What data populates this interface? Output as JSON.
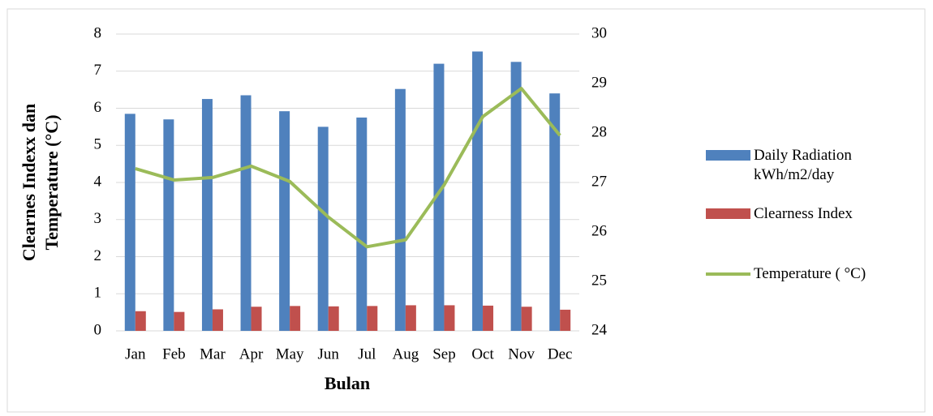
{
  "chart_data": {
    "type": "bar",
    "xlabel": "Bulan",
    "ylabel": [
      "Clearnes Indexx dan",
      "Temperature (°C)"
    ],
    "categories": [
      "Jan",
      "Feb",
      "Mar",
      "Apr",
      "May",
      "Jun",
      "Jul",
      "Aug",
      "Sep",
      "Oct",
      "Nov",
      "Dec"
    ],
    "series": [
      {
        "name": "Daily Radiation kWh/m2/day",
        "color": "#4f81bd",
        "type": "bar",
        "values": [
          5.85,
          5.7,
          6.25,
          6.35,
          5.92,
          5.5,
          5.75,
          6.52,
          7.2,
          7.53,
          7.25,
          6.4
        ]
      },
      {
        "name": "Clearness Index",
        "color": "#c0504d",
        "type": "bar",
        "values": [
          0.53,
          0.51,
          0.58,
          0.65,
          0.67,
          0.66,
          0.67,
          0.69,
          0.69,
          0.68,
          0.65,
          0.57
        ]
      },
      {
        "name": "Temperature ( °C)",
        "color": "#9bbb59",
        "type": "line",
        "axis": "y2",
        "values": [
          27.28,
          27.05,
          27.1,
          27.33,
          27.02,
          26.3,
          25.7,
          25.84,
          26.95,
          28.33,
          28.9,
          27.95
        ]
      }
    ],
    "ylim": [
      0,
      8
    ],
    "yticks": [
      0,
      1,
      2,
      3,
      4,
      5,
      6,
      7,
      8
    ],
    "y2lim": [
      24,
      30
    ],
    "y2ticks": [
      24,
      25,
      26,
      27,
      28,
      29,
      30
    ],
    "grid": true,
    "legend": "right"
  }
}
